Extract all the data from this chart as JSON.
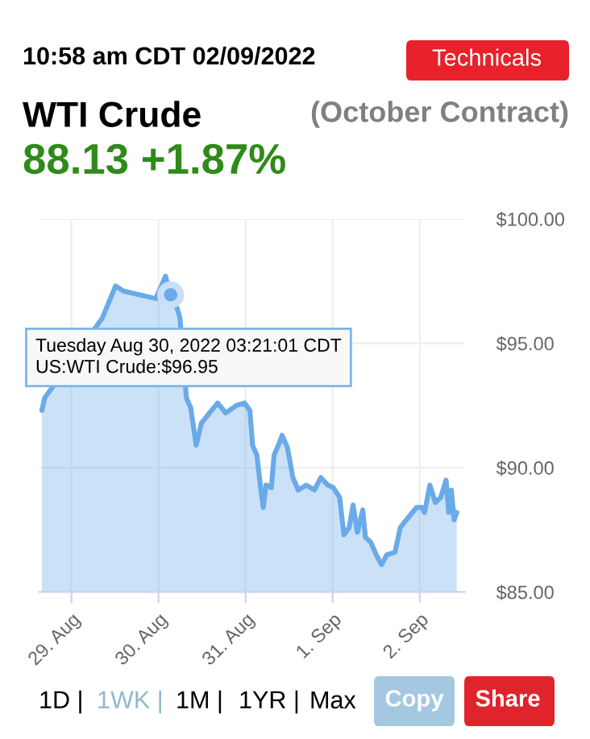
{
  "chart_data": {
    "type": "area",
    "title": "WTI Crude",
    "subtitle": "(October Contract)",
    "annotations": [
      {
        "text": "Tuesday Aug 30, 2022 03:21:01 CDT\nUS:WTI Crude:$96.95",
        "x": "2022-08-30T03:21",
        "y": 96.95
      },
      "10:58 am CDT 02/09/2022",
      "Technicals",
      "88.13 +1.87%",
      "1D |",
      "1WK |",
      "1M |",
      "1YR |",
      "Max",
      "Copy",
      "Share"
    ],
    "x": [
      "2022-08-28T15:51",
      "2022-08-28T16:36",
      "2022-08-29T08:27",
      "2022-08-29T12:09",
      "2022-08-29T14:22",
      "2022-08-29T17:20",
      "2022-08-29T20:18",
      "2022-08-29T23:16",
      "2022-08-30T01:56",
      "2022-08-30T03:21",
      "2022-08-30T05:11",
      "2022-08-30T05:56",
      "2022-08-30T07:42",
      "2022-08-30T08:53",
      "2022-08-30T10:22",
      "2022-08-30T11:51",
      "2022-08-30T14:04",
      "2022-08-30T16:18",
      "2022-08-30T18:31",
      "2022-08-30T21:29",
      "2022-08-30T23:42",
      "2022-08-31T01:11",
      "2022-08-31T01:56",
      "2022-08-31T03:07",
      "2022-08-31T04:09",
      "2022-08-31T04:53",
      "2022-08-31T05:38",
      "2022-08-31T07:07",
      "2022-08-31T07:51",
      "2022-08-31T09:20",
      "2022-08-31T10:04",
      "2022-08-31T11:33",
      "2022-08-31T13:02",
      "2022-08-31T14:31",
      "2022-08-31T16:44",
      "2022-08-31T18:58",
      "2022-08-31T20:44",
      "2022-08-31T22:40",
      "2022-09-01T00:09",
      "2022-09-01T01:56",
      "2022-09-01T03:07",
      "2022-09-01T04:35",
      "2022-09-01T05:38",
      "2022-09-01T06:49",
      "2022-09-01T08:18",
      "2022-09-01T09:02",
      "2022-09-01T10:31",
      "2022-09-01T12:00",
      "2022-09-01T13:29",
      "2022-09-01T14:58",
      "2022-09-01T17:11",
      "2022-09-01T18:40",
      "2022-09-01T20:53",
      "2022-09-01T23:07",
      "2022-09-02T00:35",
      "2022-09-02T01:20",
      "2022-09-02T02:49",
      "2022-09-02T04:18",
      "2022-09-02T05:47",
      "2022-09-02T07:16",
      "2022-09-02T08:00",
      "2022-09-02T08:44",
      "2022-09-02T09:29",
      "2022-09-02T10:13"
    ],
    "series": [
      {
        "color": "#6aaae8",
        "values": [
          92.3,
          92.8,
          96.0,
          97.3,
          97.1,
          97.0,
          96.9,
          96.8,
          97.7,
          96.95,
          96.4,
          96.0,
          92.8,
          92.4,
          90.9,
          91.8,
          92.2,
          92.6,
          92.2,
          92.5,
          92.6,
          92.3,
          90.9,
          90.5,
          89.2,
          88.4,
          89.3,
          89.2,
          90.5,
          91.0,
          91.3,
          90.8,
          89.6,
          89.1,
          89.3,
          89.1,
          89.6,
          89.3,
          89.2,
          88.8,
          87.3,
          87.6,
          88.5,
          87.4,
          88.3,
          87.2,
          87.0,
          86.5,
          86.1,
          86.5,
          86.6,
          87.6,
          88.0,
          88.4,
          88.4,
          88.2,
          89.3,
          88.6,
          88.8,
          89.5,
          88.2,
          89.1,
          87.9,
          88.2
        ]
      }
    ],
    "xlim": [
      "2022-08-28T15:07",
      "2022-09-02T12:26"
    ],
    "xticks": [
      {
        "value": "2022-08-29",
        "label": "29. Aug"
      },
      {
        "value": "2022-08-30",
        "label": "30. Aug"
      },
      {
        "value": "2022-08-31",
        "label": "31. Aug"
      },
      {
        "value": "2022-09-01",
        "label": "1. Sep"
      },
      {
        "value": "2022-09-02",
        "label": "2. Sep"
      }
    ],
    "ylim": [
      85,
      100
    ],
    "yticks": [
      {
        "value": 85,
        "label": "$85.00"
      },
      {
        "value": 90,
        "label": "$90.00"
      },
      {
        "value": 95,
        "label": "$95.00"
      },
      {
        "value": 100,
        "label": "$100.00"
      }
    ],
    "grid": true
  }
}
